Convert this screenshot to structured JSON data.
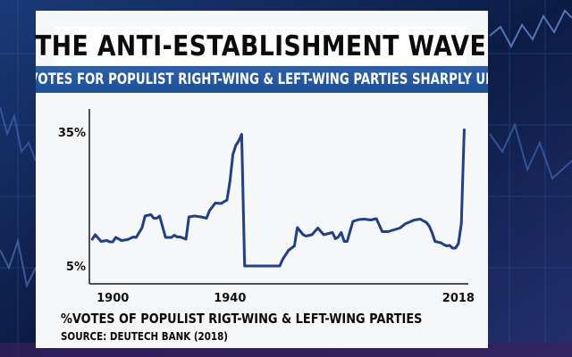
{
  "title": "THE ANTI-ESTABLISHMENT WAVE",
  "subtitle": "VOTES FOR POPULIST RIGHT-WING & LEFT-WING PARTIES SHARPLY UP",
  "caption": "%VOTES OF POPULIST RIGT-WING & LEFT-WING PARTIES",
  "source": "SOURCE: DEUTECH BANK (2018)",
  "colors": {
    "line": "#1f3f8f",
    "accent": "#2e5fa8",
    "background": "#0d1b3a"
  },
  "chart_data": {
    "type": "line",
    "title": "",
    "xlabel": "",
    "ylabel": "",
    "xlim": [
      1892,
      2022
    ],
    "ylim": [
      5,
      35
    ],
    "x_ticks": [
      {
        "value": 1900,
        "label": "1900"
      },
      {
        "value": 1940,
        "label": "1940"
      },
      {
        "value": 2018,
        "label": "2018"
      }
    ],
    "y_ticks": [
      {
        "value": 35,
        "label": "35%"
      },
      {
        "value": 5,
        "label": "5%"
      }
    ],
    "grid": false,
    "series": [
      {
        "x": [
          1893,
          1894,
          1896,
          1898,
          1899,
          1900,
          1901,
          1903,
          1905,
          1907,
          1908,
          1910,
          1911,
          1913,
          1914,
          1915,
          1916,
          1918,
          1920,
          1921,
          1922,
          1923,
          1925,
          1926,
          1928,
          1930,
          1932,
          1933,
          1935,
          1937,
          1939,
          1940,
          1941,
          1942,
          1943,
          1944,
          1945,
          1946,
          1948,
          1950,
          1953,
          1955,
          1957,
          1958,
          1960,
          1962,
          1963,
          1965,
          1966,
          1968,
          1970,
          1972,
          1975,
          1976,
          1977,
          1978,
          1979,
          1980,
          1982,
          1984,
          1986,
          1988,
          1990,
          1992,
          1994,
          1996,
          1998,
          2000,
          2003,
          2005,
          2006,
          2007,
          2008,
          2009,
          2010,
          2012,
          2013,
          2014,
          2015,
          2016,
          2017,
          2018,
          2019,
          2020
        ],
        "y": [
          11,
          12,
          10.5,
          10.7,
          10.4,
          10.4,
          11.4,
          10.7,
          10.9,
          11.5,
          11.4,
          13.6,
          16.2,
          16.5,
          15.7,
          15.7,
          16.2,
          11.4,
          11.4,
          11.9,
          11.5,
          11.5,
          11,
          16,
          16.2,
          16,
          15.7,
          17.4,
          19.1,
          19,
          19.8,
          24,
          30,
          32,
          33,
          34.5,
          5,
          5,
          5,
          5,
          5,
          5,
          5,
          6.5,
          8.5,
          9.5,
          13.6,
          12,
          11.7,
          12,
          13.5,
          12,
          12.5,
          11.1,
          11.5,
          12.5,
          10.5,
          10.5,
          15,
          15.4,
          15.5,
          15.3,
          15.6,
          12.7,
          12.7,
          13.1,
          13.5,
          14.5,
          15.3,
          15.5,
          15.1,
          14.8,
          14,
          12.5,
          10.5,
          10.2,
          9.8,
          9.5,
          9.6,
          9,
          9,
          10,
          14.5,
          35.5
        ]
      }
    ]
  }
}
